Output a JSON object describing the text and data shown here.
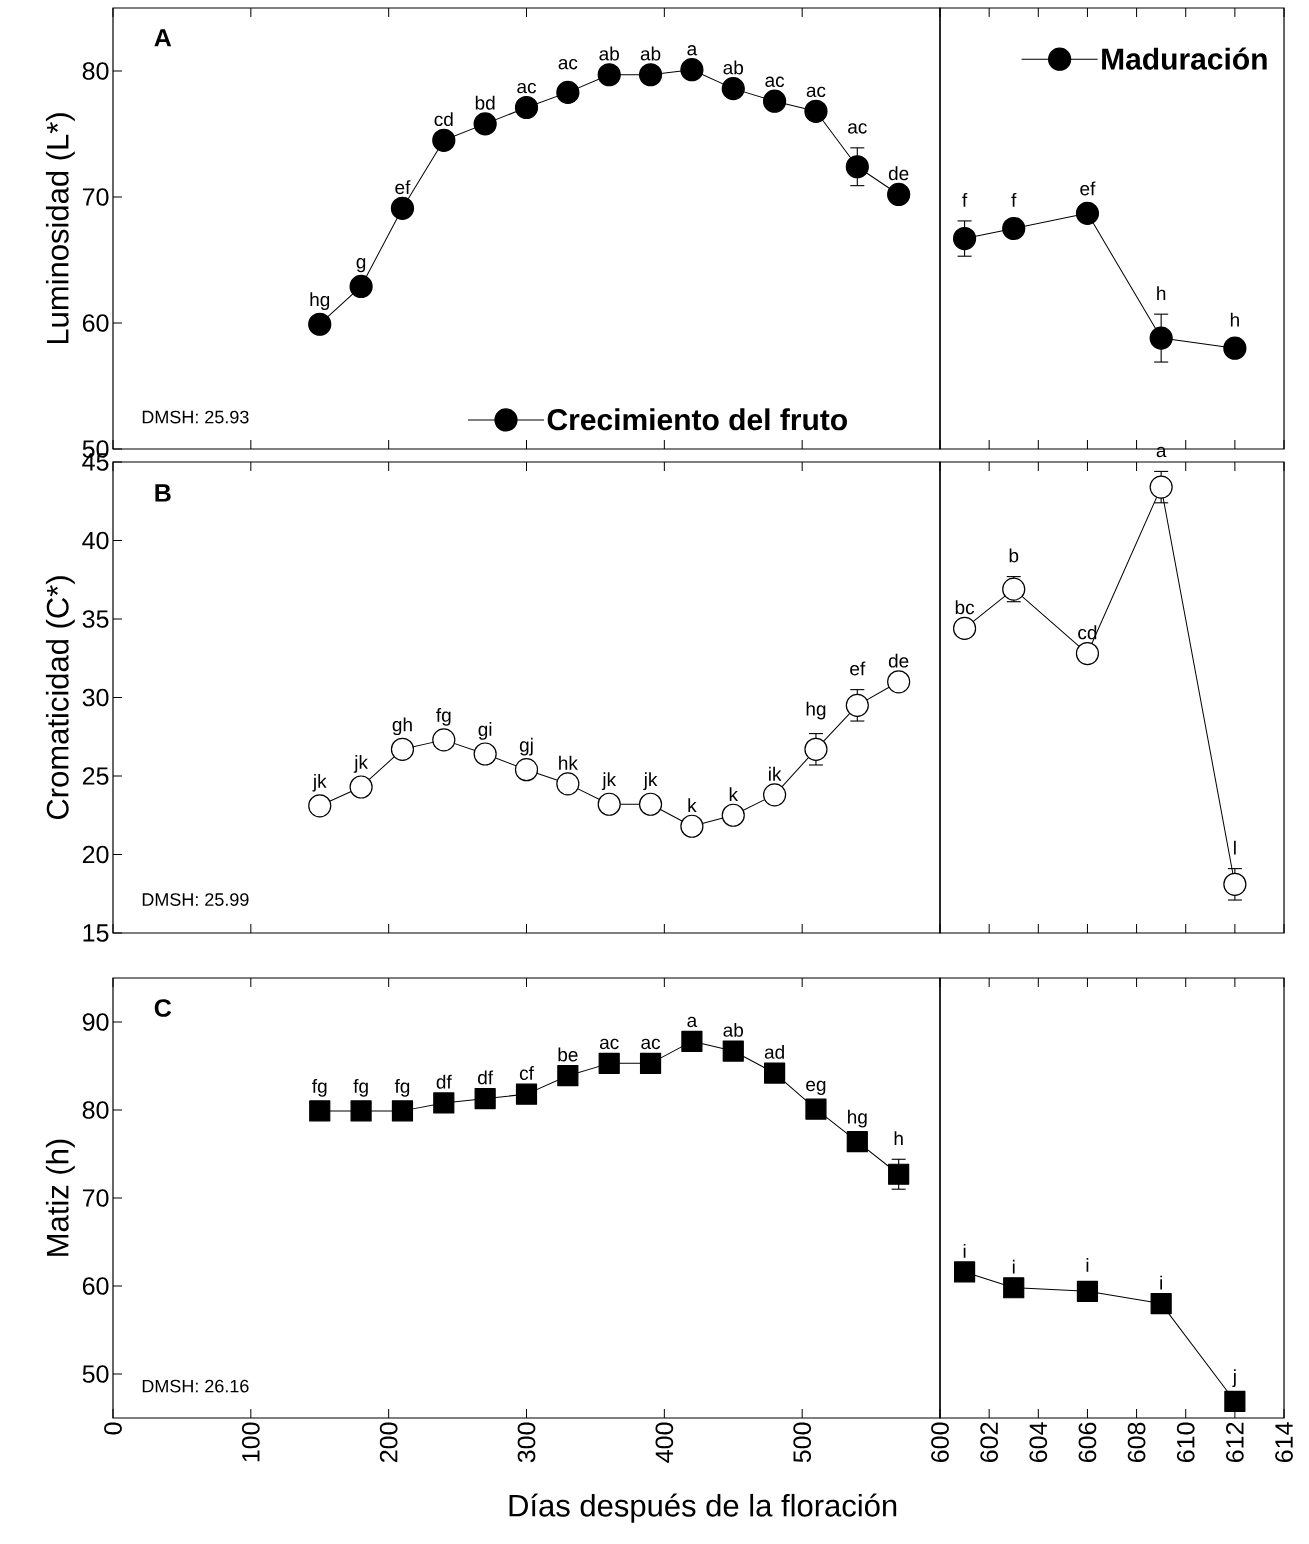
{
  "chart_data": [
    {
      "type": "line",
      "title": "A",
      "ylabel": "Luminosidad (L*)",
      "annotations": [
        "DMSH: 25.93"
      ],
      "x": [
        150,
        180,
        210,
        240,
        270,
        300,
        330,
        360,
        390,
        420,
        450,
        480,
        510,
        540,
        570
      ],
      "series": [
        {
          "name": "Crecimiento del fruto",
          "color": "#000000",
          "values": [
            59.9,
            62.9,
            69.1,
            74.5,
            75.8,
            77.1,
            78.3,
            79.7,
            79.7,
            80.1,
            78.6,
            77.6,
            76.8,
            72.4,
            70.2
          ],
          "errors": [
            null,
            null,
            null,
            null,
            null,
            null,
            0.7,
            null,
            null,
            null,
            null,
            null,
            null,
            1.5,
            null
          ],
          "value_labels": [
            "hg",
            "g",
            "ef",
            "cd",
            "bd",
            "ac",
            "ac",
            "ab",
            "ab",
            "a",
            "ab",
            "ac",
            "ac",
            "ac",
            "de"
          ]
        }
      ],
      "xlim": [
        0,
        600
      ],
      "xticks": [
        0,
        100,
        200,
        300,
        400,
        500
      ],
      "ylim": [
        50,
        85
      ],
      "yticks": [
        50,
        60,
        70,
        80
      ],
      "tick_labels": "y",
      "marker": "circle",
      "line_style": "solid",
      "legend": "bottom"
    },
    {
      "type": "line",
      "x": [
        601,
        603,
        606,
        609,
        612
      ],
      "series": [
        {
          "name": "Maduración",
          "color": "#000000",
          "values": [
            66.7,
            67.5,
            68.7,
            58.8,
            58.0
          ],
          "errors": [
            1.4,
            0.6,
            0.3,
            1.9,
            0.6
          ],
          "value_labels": [
            "f",
            "f",
            "ef",
            "h",
            "h"
          ]
        }
      ],
      "xlim": [
        600,
        614
      ],
      "xticks": [
        600,
        602,
        604,
        606,
        608,
        610,
        612,
        614
      ],
      "ylim": [
        50,
        85
      ],
      "tick_labels": false,
      "marker": "circle",
      "line_style": "solid",
      "legend": "top right"
    },
    {
      "type": "line",
      "title": "B",
      "ylabel": "Cromaticidad (C*)",
      "annotations": [
        "DMSH: 25.99"
      ],
      "x": [
        150,
        180,
        210,
        240,
        270,
        300,
        330,
        360,
        390,
        420,
        450,
        480,
        510,
        540,
        570
      ],
      "series": [
        {
          "color": "#ffffff",
          "values": [
            23.1,
            24.3,
            26.7,
            27.3,
            26.4,
            25.4,
            24.5,
            23.2,
            23.2,
            21.8,
            22.5,
            23.8,
            26.7,
            29.5,
            31.0
          ],
          "errors": [
            null,
            null,
            null,
            null,
            null,
            null,
            null,
            null,
            null,
            null,
            null,
            null,
            1.0,
            1.0,
            null
          ],
          "value_labels": [
            "jk",
            "jk",
            "gh",
            "fg",
            "gi",
            "gj",
            "hk",
            "jk",
            "jk",
            "k",
            "k",
            "ik",
            "hg",
            "ef",
            "de"
          ]
        }
      ],
      "xlim": [
        0,
        600
      ],
      "xticks": [
        0,
        100,
        200,
        300,
        400,
        500
      ],
      "ylim": [
        15,
        45
      ],
      "yticks": [
        15,
        20,
        25,
        30,
        35,
        40,
        45
      ],
      "tick_labels": "y",
      "marker": "circle",
      "line_style": "solid"
    },
    {
      "type": "line",
      "x": [
        601,
        603,
        606,
        609,
        612
      ],
      "series": [
        {
          "color": "#ffffff",
          "values": [
            34.4,
            36.9,
            32.8,
            43.4,
            18.1
          ],
          "errors": [
            null,
            0.8,
            null,
            1.0,
            1.0
          ],
          "value_labels": [
            "bc",
            "b",
            "cd",
            "a",
            "l"
          ]
        }
      ],
      "xlim": [
        600,
        614
      ],
      "xticks": [
        600,
        602,
        604,
        606,
        608,
        610,
        612,
        614
      ],
      "ylim": [
        15,
        45
      ],
      "tick_labels": false,
      "marker": "circle",
      "line_style": "solid"
    },
    {
      "type": "line",
      "title": "C",
      "ylabel": "Matiz (h)",
      "xlabel": "Días después de la floración",
      "annotations": [
        "DMSH: 26.16"
      ],
      "x": [
        150,
        180,
        210,
        240,
        270,
        300,
        330,
        360,
        390,
        420,
        450,
        480,
        510,
        540,
        570
      ],
      "series": [
        {
          "color": "#000000",
          "values": [
            79.9,
            79.9,
            79.9,
            80.8,
            81.3,
            81.8,
            83.9,
            85.3,
            85.3,
            87.8,
            86.7,
            84.2,
            80.1,
            76.4,
            72.7
          ],
          "errors": [
            null,
            null,
            null,
            null,
            null,
            null,
            null,
            null,
            null,
            null,
            null,
            null,
            null,
            null,
            1.7
          ],
          "value_labels": [
            "fg",
            "fg",
            "fg",
            "df",
            "df",
            "cf",
            "be",
            "ac",
            "ac",
            "a",
            "ab",
            "ad",
            "eg",
            "hg",
            "h"
          ]
        }
      ],
      "xlim": [
        0,
        600
      ],
      "xticks": [
        0,
        100,
        200,
        300,
        400,
        500
      ],
      "ylim": [
        45,
        95
      ],
      "yticks": [
        50,
        60,
        70,
        80,
        90
      ],
      "marker": "square",
      "line_style": "solid"
    },
    {
      "type": "line",
      "x": [
        601,
        603,
        606,
        609,
        612
      ],
      "series": [
        {
          "color": "#000000",
          "values": [
            61.6,
            59.8,
            59.4,
            58.0,
            46.9
          ],
          "errors": [
            null,
            null,
            0.6,
            null,
            null
          ],
          "value_labels": [
            "i",
            "i",
            "i",
            "i",
            "j"
          ]
        }
      ],
      "xlim": [
        600,
        614
      ],
      "xticks": [
        600,
        602,
        604,
        606,
        608,
        610,
        612,
        614
      ],
      "ylim": [
        45,
        95
      ],
      "tick_labels": "x",
      "marker": "square",
      "line_style": "solid"
    }
  ]
}
